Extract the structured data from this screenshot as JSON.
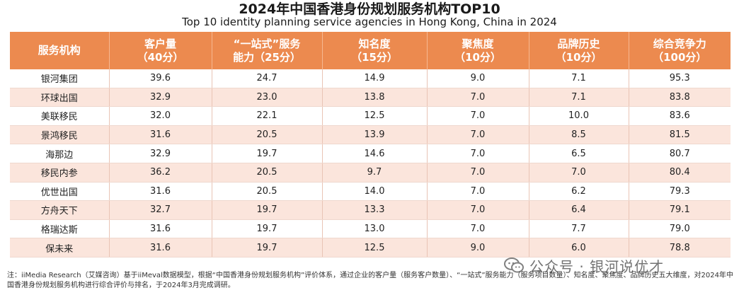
{
  "title": "2024年中国香港身份规划服务机构TOP10",
  "subtitle": "Top 10 identity planning service agencies in Hong Kong, China in 2024",
  "table": {
    "headers": [
      {
        "line1": "服务机构",
        "line2": ""
      },
      {
        "line1": "客户量",
        "line2": "（40分）"
      },
      {
        "line1": "“一站式”服务",
        "line2": "能力（25分）"
      },
      {
        "line1": "知名度",
        "line2": "（15分）"
      },
      {
        "line1": "聚焦度",
        "line2": "（10分）"
      },
      {
        "line1": "品牌历史",
        "line2": "（10分）"
      },
      {
        "line1": "综合竞争力",
        "line2": "（100分）"
      }
    ],
    "rows": [
      [
        "银河集团",
        "39.6",
        "24.7",
        "14.9",
        "9.0",
        "7.1",
        "95.3"
      ],
      [
        "环球出国",
        "32.9",
        "23.0",
        "13.8",
        "7.0",
        "7.1",
        "83.8"
      ],
      [
        "美联移民",
        "32.0",
        "22.1",
        "12.5",
        "7.0",
        "10.0",
        "83.6"
      ],
      [
        "景鸿移民",
        "31.6",
        "20.5",
        "13.9",
        "7.0",
        "8.5",
        "81.5"
      ],
      [
        "海那边",
        "32.9",
        "19.7",
        "14.6",
        "7.0",
        "6.5",
        "80.7"
      ],
      [
        "移民内参",
        "36.2",
        "20.5",
        "9.7",
        "7.0",
        "7.0",
        "80.4"
      ],
      [
        "优世出国",
        "31.6",
        "20.5",
        "14.0",
        "7.0",
        "6.2",
        "79.3"
      ],
      [
        "方舟天下",
        "32.7",
        "19.7",
        "13.3",
        "7.0",
        "6.4",
        "79.1"
      ],
      [
        "格瑞达斯",
        "31.6",
        "19.7",
        "13.0",
        "7.0",
        "7.7",
        "79.0"
      ],
      [
        "保未来",
        "31.6",
        "19.7",
        "12.5",
        "9.0",
        "6.0",
        "78.8"
      ]
    ]
  },
  "footnote": "注：iiMedia Research（艾媒咨询）基于iiMeval数据模型，根据“中国香港身份规划服务机构”评价体系，通过企业的客户量（服务客户数量）、“一站式”服务能力（服务项目数量）、知名度、聚焦度、品牌历史五大维度，对2024年中国香港身份规划服务机构进行综合评价与排名，于2024年3月完成调研。",
  "watermark": {
    "icon": "wechat-icon",
    "text": "公众号 · 银河说优才"
  },
  "colors": {
    "header_bg": "#ec8a4f",
    "stripe": "#fbe5dc"
  }
}
